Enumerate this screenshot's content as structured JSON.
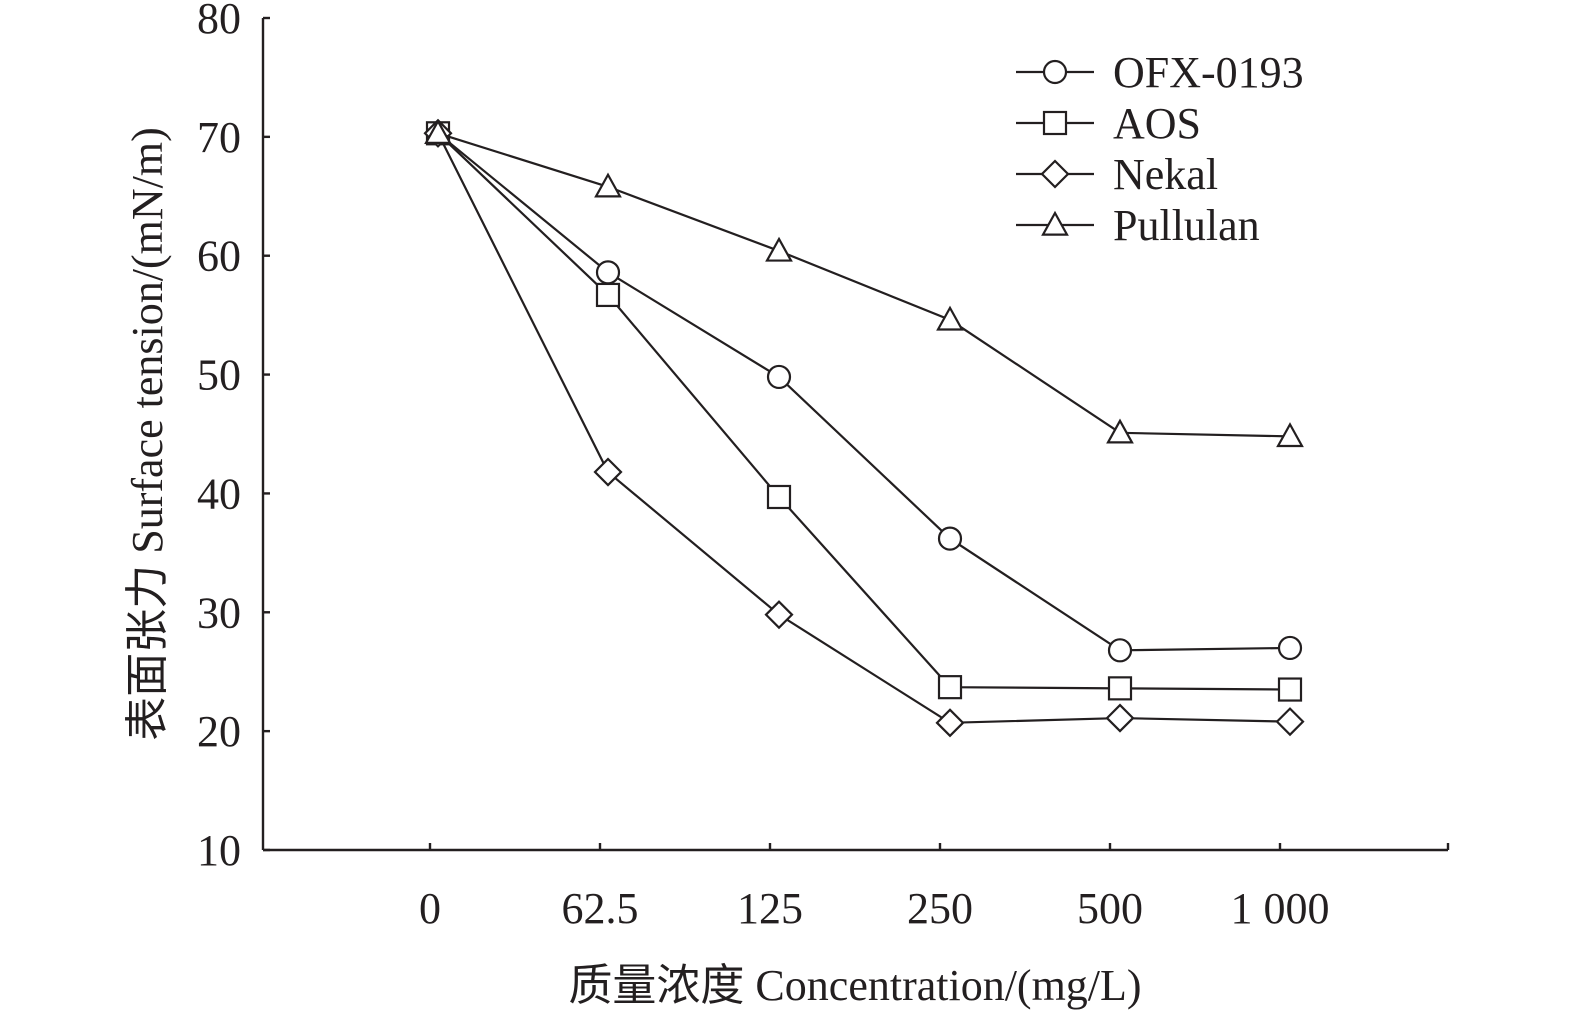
{
  "chart_data": {
    "type": "line",
    "title": "",
    "xlabel": "质量浓度 Concentration/(mg/L)",
    "ylabel": "表面张力 Surface tension/(mN/m)",
    "categories": [
      "0",
      "62.5",
      "125",
      "250",
      "500",
      "1 000"
    ],
    "ylim": [
      10,
      80
    ],
    "yticks": [
      10,
      20,
      30,
      40,
      50,
      60,
      70,
      80
    ],
    "grid": false,
    "legend_position": "top-right",
    "series": [
      {
        "name": "OFX-0193",
        "marker": "circle",
        "values": [
          70.3,
          58.6,
          49.8,
          36.2,
          26.8,
          27.0
        ]
      },
      {
        "name": "AOS",
        "marker": "square",
        "values": [
          70.3,
          56.7,
          39.7,
          23.7,
          23.6,
          23.5
        ]
      },
      {
        "name": "Nekal",
        "marker": "diamond",
        "values": [
          70.3,
          41.8,
          29.8,
          20.7,
          21.1,
          20.8
        ]
      },
      {
        "name": "Pullulan",
        "marker": "triangle",
        "values": [
          70.3,
          65.8,
          60.4,
          54.6,
          45.1,
          44.8
        ]
      }
    ]
  }
}
